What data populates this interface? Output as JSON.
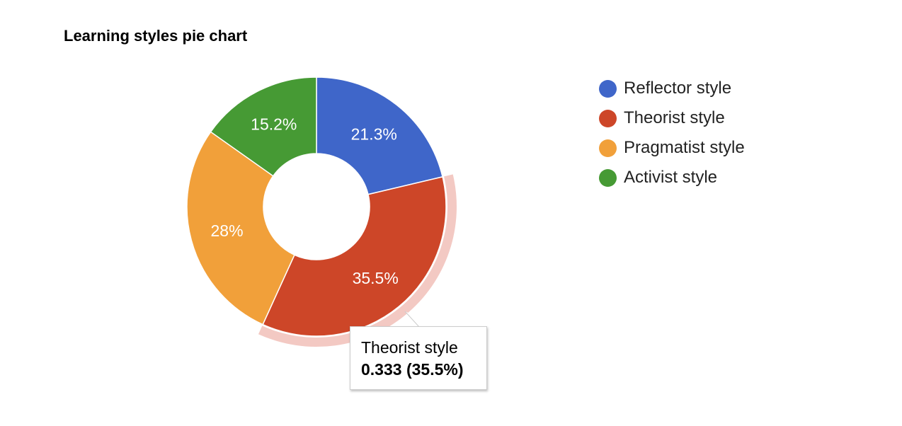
{
  "chart_data": {
    "type": "pie",
    "title": "Learning styles pie chart",
    "donut": true,
    "legend_position": "right",
    "slices": [
      {
        "name": "Reflector style",
        "percent_label": "21.3%",
        "share": 0.213,
        "color": "#3f66c9"
      },
      {
        "name": "Theorist style",
        "percent_label": "35.5%",
        "share": 0.355,
        "color": "#cd4628"
      },
      {
        "name": "Pragmatist style",
        "percent_label": "28%",
        "share": 0.28,
        "color": "#f1a03a"
      },
      {
        "name": "Activist style",
        "percent_label": "15.2%",
        "share": 0.152,
        "color": "#469a34"
      }
    ],
    "highlighted_slice": "Theorist style",
    "highlight_color": "#f3c9c3",
    "tooltip": {
      "name": "Theorist style",
      "value": "0.333 (35.5%)"
    }
  }
}
